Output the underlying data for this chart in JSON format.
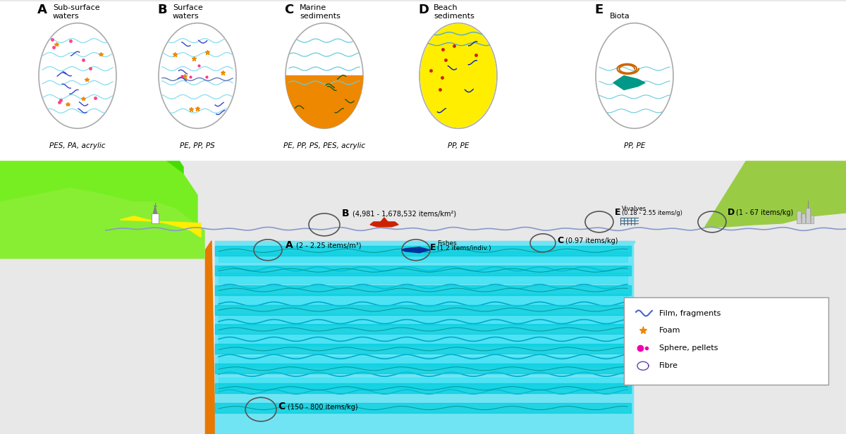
{
  "bg_color": "#e8e8e8",
  "water_color": "#00cccc",
  "water_dark": "#009999",
  "deep_water_color": "#00bbbb",
  "ocean_floor_color": "#e87800",
  "sand_color": "#f5c800",
  "land_color_dark": "#00cc00",
  "land_color_mid": "#66dd00",
  "land_color_light": "#99ee44",
  "mountain_color": "#1a6633",
  "surface_line_color": "#7788cc",
  "circle_outline": "#555555",
  "label_A_top": "A",
  "label_B_top": "B",
  "label_C_top": "C",
  "label_D_top": "D",
  "label_E_top": "E",
  "title_A": "Sub-surface\nwaters",
  "title_B": "Surface\nwaters",
  "title_C": "Marine\nsediments",
  "title_D": "Beach\nsediments",
  "title_E": "Biota",
  "sub_A": "PES, PA, acrylic",
  "sub_B": "PE, PP, PS",
  "sub_C": "PE, PP, PS, PES, acrylic",
  "sub_D": "PP, PE",
  "sub_E": "PP, PE",
  "legend_items": [
    "Film, fragments",
    "Foam",
    "Sphere, pellets",
    "Fibre"
  ],
  "legend_colors": [
    "#4466cc",
    "#ee8800",
    "#ee00aa",
    "#6644aa"
  ],
  "ann_A": "A (2 - 2.25 items/m³)",
  "ann_B": "B (4,981 - 1,678,532 items/km²)",
  "ann_C_deep": "C (150 - 800 items/kg)",
  "ann_C_shallow": "C (0.97 items/kg)",
  "ann_D": "D (1 - 67 items/kg)",
  "ann_E_fish": "E Fishes\n(1.2 items/indiv.)",
  "ann_E_vivalves": "E Vivalves\n(0.18 - 2.55 items/g)"
}
